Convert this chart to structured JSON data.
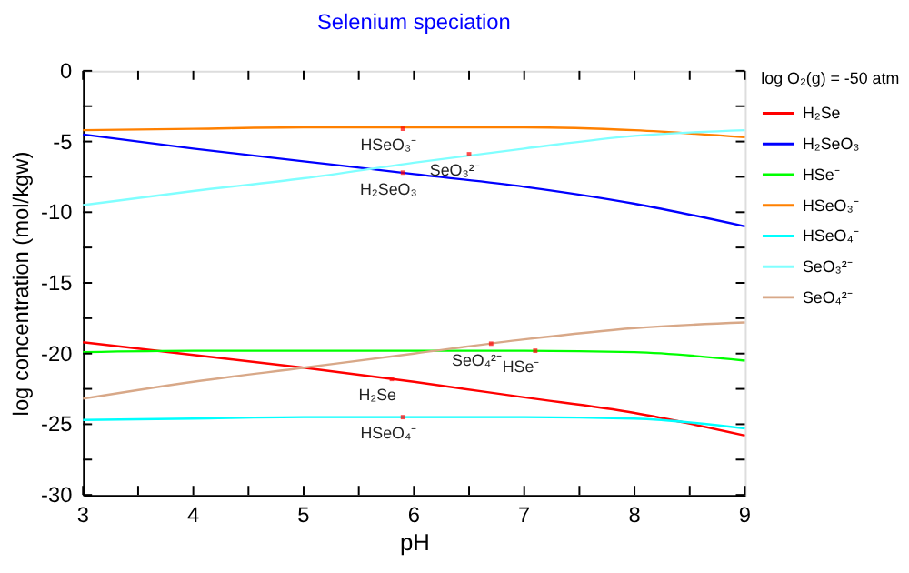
{
  "chart_data": {
    "type": "line",
    "title": "Selenium speciation",
    "xlabel": "pH",
    "ylabel": "log concentration (mol/kgw)",
    "legend_title": "log O₂(g) = -50 atm",
    "legend": "right",
    "grid": false,
    "marker": "none",
    "line_style": "solid",
    "x": [
      3,
      4,
      5,
      6,
      7,
      8,
      9
    ],
    "series": [
      {
        "name": "H₂Se",
        "color": "#ff0000",
        "values": [
          -19.2,
          -20.1,
          -21.0,
          -22.0,
          -23.1,
          -24.2,
          -25.8
        ]
      },
      {
        "name": "H₂SeO₃",
        "color": "#0000ff",
        "values": [
          -4.5,
          -5.5,
          -6.4,
          -7.3,
          -8.2,
          -9.4,
          -11.0
        ]
      },
      {
        "name": "HSe⁻",
        "color": "#00ff00",
        "values": [
          -19.9,
          -19.8,
          -19.8,
          -19.8,
          -19.8,
          -19.9,
          -20.5
        ]
      },
      {
        "name": "HSeO₃⁻",
        "color": "#ff8000",
        "values": [
          -4.2,
          -4.1,
          -4.0,
          -4.0,
          -4.0,
          -4.2,
          -4.7
        ]
      },
      {
        "name": "HSeO₄⁻",
        "color": "#00ffff",
        "values": [
          -24.7,
          -24.6,
          -24.5,
          -24.5,
          -24.5,
          -24.6,
          -25.3
        ]
      },
      {
        "name": "SeO₃²⁻",
        "color": "#80ffff",
        "values": [
          -9.5,
          -8.5,
          -7.6,
          -6.5,
          -5.5,
          -4.6,
          -4.2
        ]
      },
      {
        "name": "SeO₄²⁻",
        "color": "#d8a888",
        "values": [
          -23.2,
          -22.0,
          -21.0,
          -20.0,
          -19.0,
          -18.2,
          -17.8
        ]
      }
    ],
    "xlim": [
      3,
      9
    ],
    "xticks": [
      3,
      {
        "value": 3.5,
        "label": null
      },
      4,
      {
        "value": 4.5,
        "label": null
      },
      5,
      {
        "value": 5.5,
        "label": null
      },
      6,
      {
        "value": 6.5,
        "label": null
      },
      7,
      {
        "value": 7.5,
        "label": null
      },
      8,
      {
        "value": 8.5,
        "label": null
      },
      9
    ],
    "ylim": [
      -30,
      0
    ],
    "yticks": [
      -30,
      {
        "value": -27.5,
        "label": null
      },
      -25,
      {
        "value": -22.5,
        "label": null
      },
      -20,
      {
        "value": -17.5,
        "label": null
      },
      -15,
      {
        "value": -12.5,
        "label": null
      },
      -10,
      {
        "value": -7.5,
        "label": null
      },
      -5,
      {
        "value": -2.5,
        "label": null
      },
      0
    ],
    "annotations": [
      {
        "text": "HSeO₃⁻",
        "x": 5.9,
        "y": -4.1
      },
      {
        "text": "SeO₃²⁻",
        "x": 6.5,
        "y": -5.9
      },
      {
        "text": "H₂SeO₃",
        "x": 5.9,
        "y": -7.2
      },
      {
        "text": "SeO₄²⁻",
        "x": 6.7,
        "y": -19.3
      },
      {
        "text": "HSe⁻",
        "x": 7.1,
        "y": -19.8
      },
      {
        "text": "H₂Se",
        "x": 5.8,
        "y": -21.8
      },
      {
        "text": "HSeO₄⁻",
        "x": 5.9,
        "y": -24.5
      }
    ]
  }
}
